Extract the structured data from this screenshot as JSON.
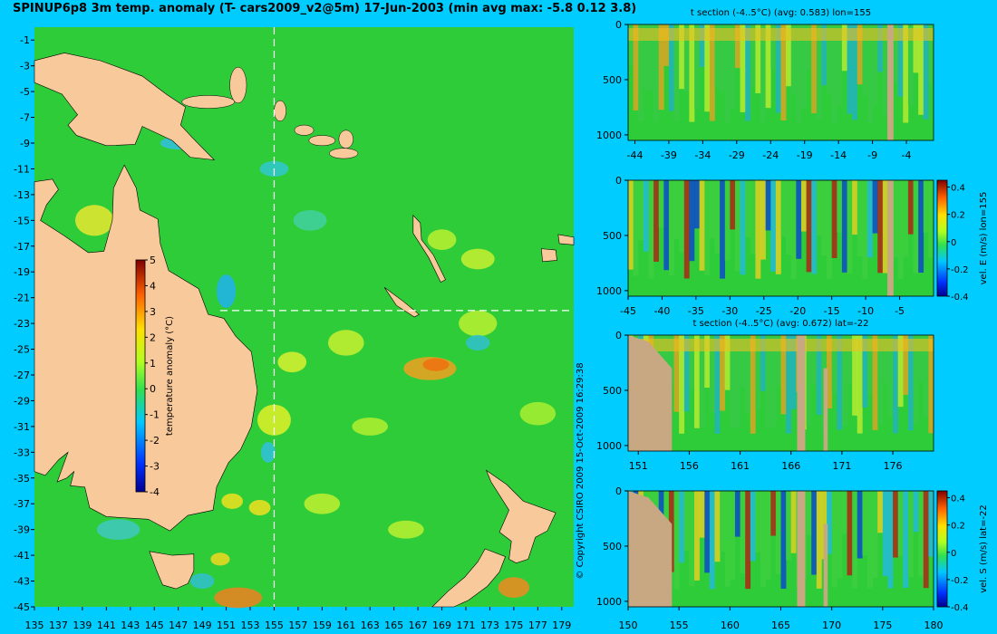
{
  "title": "SPINUP6p8 3m temp. anomaly (T- cars2009_v2@5m) 17-Jun-2003 (min avg max: -5.8 0.12 3.8)",
  "copyright": "© Copyright CSIRO 2009    15-Oct-2009 16:29:38",
  "colors": {
    "background": "#00ccff",
    "land": "#f8c99a",
    "section_land": "#c8a882",
    "ocean_base": "#2fcc3a"
  },
  "chart_data": [
    {
      "type": "heatmap",
      "name": "map",
      "title": "SPINUP6p8 3m temp. anomaly (T- cars2009_v2@5m) 17-Jun-2003 (min avg max: -5.8 0.12 3.8)",
      "xlim": [
        135,
        180
      ],
      "ylim": [
        -45,
        0
      ],
      "x_ticks": [
        "135",
        "137",
        "139",
        "141",
        "143",
        "145",
        "147",
        "149",
        "151",
        "153",
        "155",
        "157",
        "159",
        "161",
        "163",
        "165",
        "167",
        "169",
        "171",
        "173",
        "175",
        "177",
        "179"
      ],
      "y_ticks": [
        "-1",
        "-3",
        "-5",
        "-7",
        "-9",
        "-11",
        "-13",
        "-15",
        "-17",
        "-19",
        "-21",
        "-23",
        "-25",
        "-27",
        "-29",
        "-31",
        "-33",
        "-35",
        "-37",
        "-39",
        "-41",
        "-43",
        "-45"
      ],
      "crosshair": {
        "lon": 155,
        "lat": -22
      },
      "colorbar": {
        "label": "temperature anomaly (°C)",
        "range": [
          -4,
          5
        ],
        "ticks": [
          "5",
          "4",
          "3",
          "2",
          "1",
          "0",
          "-1",
          "-2",
          "-3",
          "-4"
        ]
      }
    },
    {
      "type": "heatmap",
      "name": "section-1",
      "title": "t section (-4..5°C) (avg: 0.583) lon=155",
      "xlim": [
        -45,
        0
      ],
      "ylim": [
        1050,
        0
      ],
      "x_ticks": [
        "-44",
        "-39",
        "-34",
        "-29",
        "-24",
        "-19",
        "-14",
        "-9",
        "-4"
      ],
      "y_ticks": [
        "0",
        "500",
        "1000"
      ]
    },
    {
      "type": "heatmap",
      "name": "section-2",
      "title": "",
      "xlim": [
        -45,
        0
      ],
      "ylim": [
        1050,
        0
      ],
      "x_ticks": [
        "-45",
        "-40",
        "-35",
        "-30",
        "-25",
        "-20",
        "-15",
        "-10",
        "-5"
      ],
      "y_ticks": [
        "0",
        "500",
        "1000"
      ],
      "colorbar": {
        "label": "vel. E (m/s) lon=155",
        "range": [
          -0.4,
          0.45
        ],
        "ticks": [
          "0.4",
          "0.2",
          "0",
          "-0.2",
          "-0.4"
        ]
      }
    },
    {
      "type": "heatmap",
      "name": "section-3",
      "title": "t section (-4..5°C) (avg: 0.672) lat=-22",
      "xlim": [
        150,
        180
      ],
      "ylim": [
        1050,
        0
      ],
      "x_ticks": [
        "151",
        "156",
        "161",
        "166",
        "171",
        "176"
      ],
      "y_ticks": [
        "0",
        "500",
        "1000"
      ]
    },
    {
      "type": "heatmap",
      "name": "section-4",
      "title": "",
      "xlim": [
        150,
        180
      ],
      "ylim": [
        1050,
        0
      ],
      "x_ticks": [
        "150",
        "155",
        "160",
        "165",
        "170",
        "175",
        "180"
      ],
      "y_ticks": [
        "0",
        "500",
        "1000"
      ],
      "colorbar": {
        "label": "vel. S (m/s) lat=-22",
        "range": [
          -0.4,
          0.45
        ],
        "ticks": [
          "0.4",
          "0.2",
          "0",
          "-0.2",
          "-0.4"
        ]
      }
    }
  ]
}
